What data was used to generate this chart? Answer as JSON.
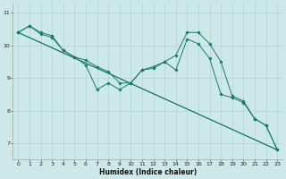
{
  "xlabel": "Humidex (Indice chaleur)",
  "background_color": "#cce8e8",
  "grid_color": "#aacfcf",
  "line_color": "#1a7a6e",
  "xlim": [
    -0.5,
    23.5
  ],
  "ylim": [
    6.5,
    11.3
  ],
  "yticks": [
    7,
    8,
    9,
    10,
    11
  ],
  "xticks": [
    0,
    1,
    2,
    3,
    4,
    5,
    6,
    7,
    8,
    9,
    10,
    11,
    12,
    13,
    14,
    15,
    16,
    17,
    18,
    19,
    20,
    21,
    22,
    23
  ],
  "series": [
    {
      "x": [
        0,
        1,
        2,
        3,
        4,
        5,
        6,
        7,
        8,
        9,
        10,
        11,
        12,
        13,
        14,
        15,
        16,
        17,
        18,
        19,
        20,
        21,
        22,
        23
      ],
      "y": [
        10.4,
        10.6,
        10.4,
        10.3,
        9.85,
        9.65,
        9.55,
        9.35,
        9.2,
        8.85,
        8.85,
        9.25,
        9.35,
        9.5,
        9.7,
        10.4,
        10.4,
        10.05,
        9.5,
        8.45,
        8.3,
        7.75,
        7.55,
        6.8
      ],
      "marker": true
    },
    {
      "x": [
        0,
        1,
        2,
        3,
        4,
        5,
        6,
        7,
        8,
        9,
        10,
        11,
        12,
        13,
        14,
        15,
        16,
        17,
        18,
        19,
        20,
        21,
        22,
        23
      ],
      "y": [
        10.4,
        10.6,
        10.35,
        10.25,
        9.85,
        9.65,
        9.4,
        8.65,
        8.85,
        8.65,
        8.85,
        9.25,
        9.3,
        9.5,
        9.25,
        10.2,
        10.05,
        9.6,
        8.5,
        8.4,
        8.25,
        7.75,
        7.55,
        6.8
      ],
      "marker": true
    },
    {
      "x": [
        0,
        23
      ],
      "y": [
        10.4,
        6.8
      ],
      "marker": false
    },
    {
      "x": [
        0,
        23
      ],
      "y": [
        10.4,
        6.8
      ],
      "marker": false
    }
  ]
}
